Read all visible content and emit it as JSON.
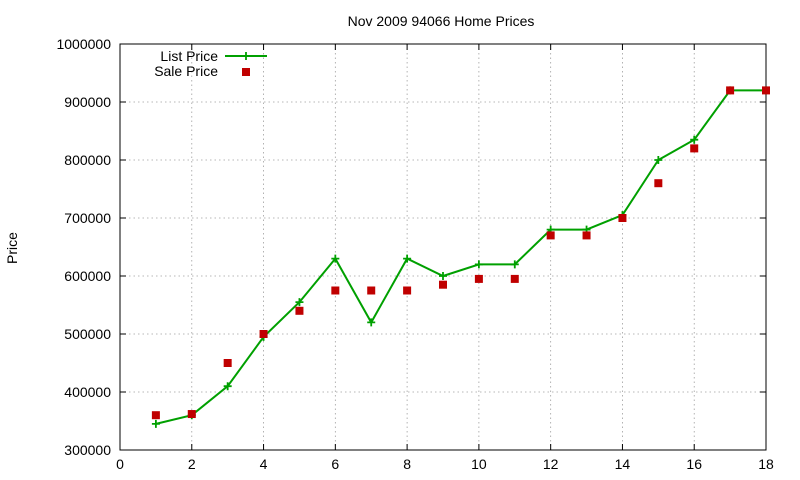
{
  "chart_data": {
    "type": "line",
    "title": "Nov 2009 94066 Home Prices",
    "xlabel": "",
    "ylabel": "Price",
    "xlim": [
      0,
      18
    ],
    "ylim": [
      300000,
      1000000
    ],
    "x_ticks": [
      0,
      2,
      4,
      6,
      8,
      10,
      12,
      14,
      16,
      18
    ],
    "y_ticks": [
      300000,
      400000,
      500000,
      600000,
      700000,
      800000,
      900000,
      1000000
    ],
    "grid": true,
    "legend_position": "top-left",
    "series": [
      {
        "name": "List Price",
        "style": "line-with-plus-markers",
        "color": "#00a000",
        "points": [
          [
            1,
            345000
          ],
          [
            2,
            360000
          ],
          [
            3,
            410000
          ],
          [
            4,
            495000
          ],
          [
            5,
            555000
          ],
          [
            6,
            630000
          ],
          [
            7,
            520000
          ],
          [
            8,
            630000
          ],
          [
            9,
            600000
          ],
          [
            10,
            620000
          ],
          [
            11,
            620000
          ],
          [
            12,
            680000
          ],
          [
            13,
            680000
          ],
          [
            14,
            705000
          ],
          [
            15,
            800000
          ],
          [
            16,
            835000
          ],
          [
            17,
            920000
          ],
          [
            18,
            920000
          ]
        ]
      },
      {
        "name": "Sale Price",
        "style": "square-markers",
        "color": "#c00000",
        "points": [
          [
            1,
            360000
          ],
          [
            2,
            362000
          ],
          [
            3,
            450000
          ],
          [
            4,
            500000
          ],
          [
            5,
            540000
          ],
          [
            6,
            575000
          ],
          [
            7,
            575000
          ],
          [
            8,
            575000
          ],
          [
            9,
            585000
          ],
          [
            10,
            595000
          ],
          [
            11,
            595000
          ],
          [
            12,
            670000
          ],
          [
            13,
            670000
          ],
          [
            14,
            700000
          ],
          [
            15,
            760000
          ],
          [
            16,
            820000
          ],
          [
            17,
            920000
          ],
          [
            18,
            920000
          ]
        ]
      }
    ]
  }
}
